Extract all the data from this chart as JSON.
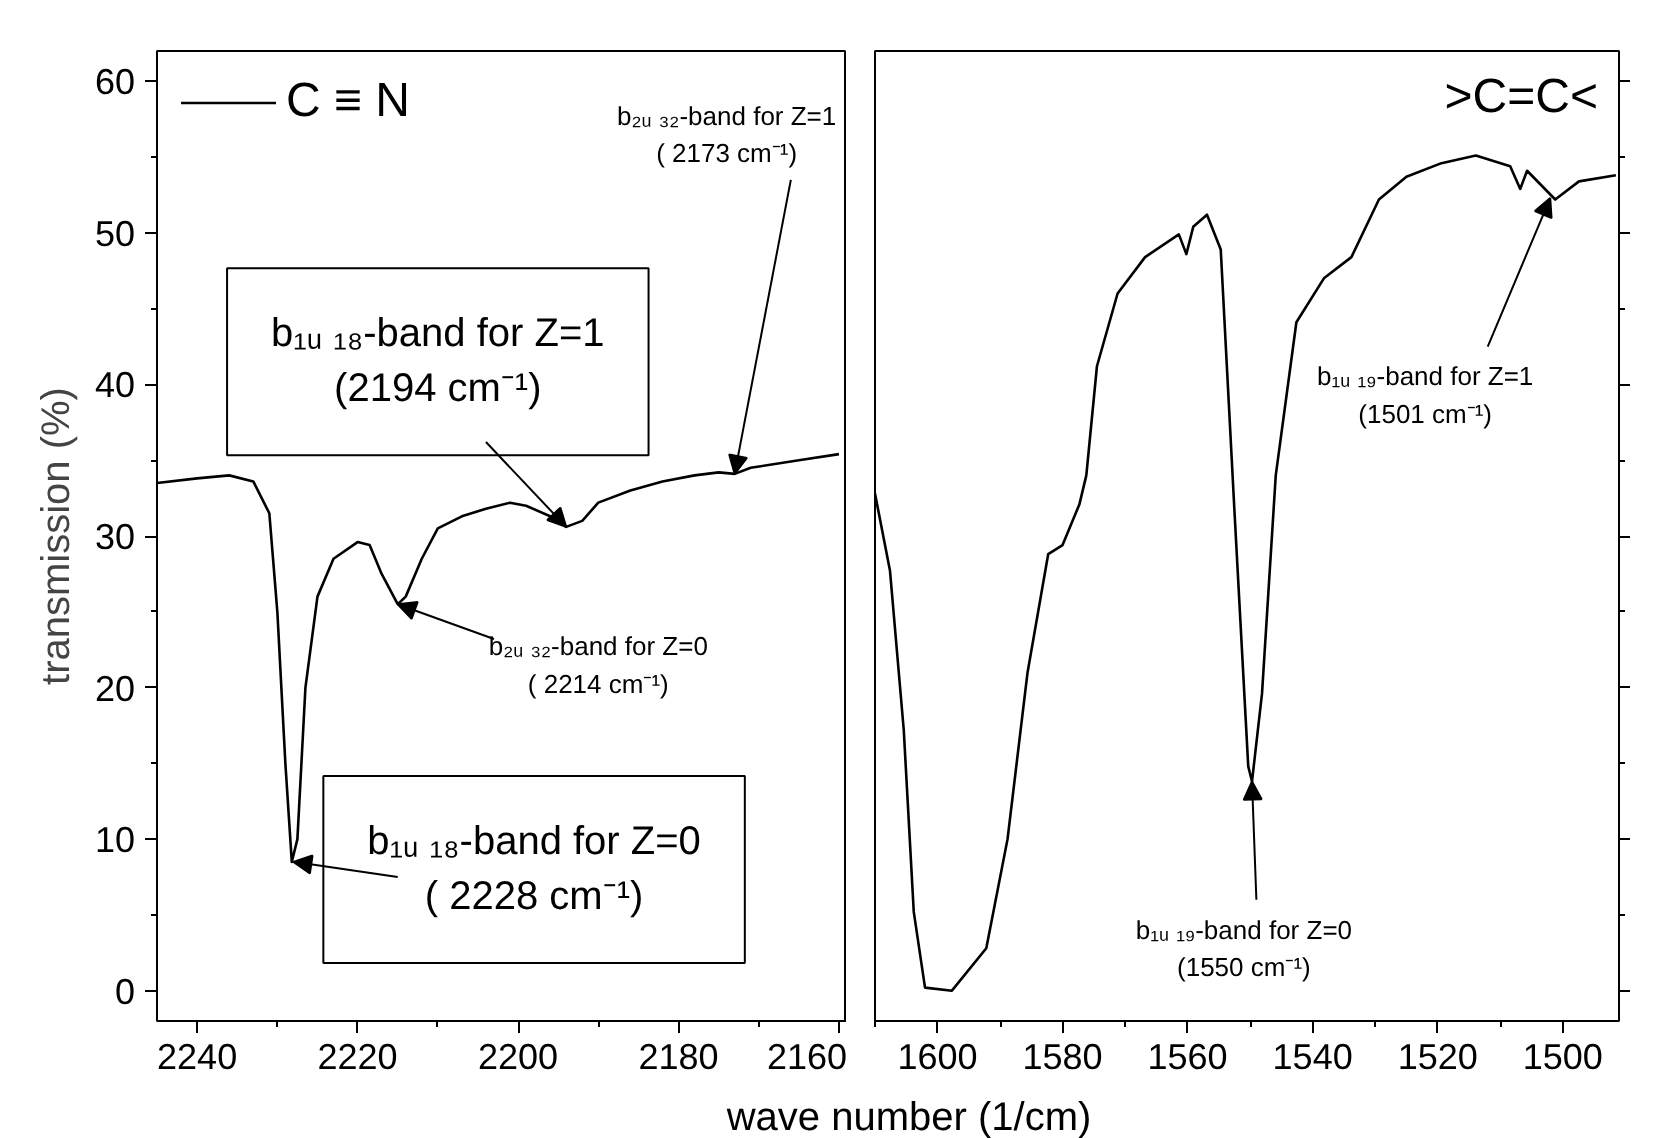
{
  "chart_data": [
    {
      "type": "line",
      "ylabel": "transmission (%)",
      "xlabel": "wave number (1/cm)",
      "legend": "top left",
      "line_style": "solid",
      "marker": "none",
      "x": [
        2245,
        2240,
        2236,
        2233,
        2231,
        2230,
        2229,
        2228.2,
        2227.5,
        2226.5,
        2225,
        2223,
        2220,
        2218.5,
        2217,
        2215,
        2214,
        2212,
        2210,
        2207,
        2204,
        2201,
        2199,
        2196,
        2194,
        2192,
        2190,
        2186,
        2182,
        2178,
        2175,
        2173,
        2171,
        2165,
        2160
      ],
      "series": [
        {
          "name": "C ≡ N",
          "color": "#000000",
          "values": [
            33.5,
            33.8,
            34.0,
            33.6,
            31.5,
            25,
            15,
            8.5,
            10,
            20,
            26,
            28.5,
            29.6,
            29.4,
            27.5,
            25.5,
            26,
            28.5,
            30.5,
            31.3,
            31.8,
            32.2,
            32.0,
            31.3,
            30.6,
            31.0,
            32.2,
            33.0,
            33.6,
            34.0,
            34.2,
            34.1,
            34.5,
            35.0,
            35.4
          ]
        }
      ],
      "xlim": [
        2245,
        2159
      ],
      "xticks": [
        2240,
        2220,
        2200,
        2180,
        2160
      ],
      "ylim": [
        -2,
        62
      ],
      "yticks": [
        0,
        10,
        20,
        30,
        40,
        50,
        60
      ],
      "annotations": [
        {
          "text": "b₁ᵤ ₁₈-band for Z=1\n(2194 cm⁻¹)",
          "x": 2194,
          "y": 30.6
        },
        {
          "text": "b₂ᵤ ₃₂-band for Z=0\n( 2214 cm⁻¹)",
          "x": 2215,
          "y": 25.5
        },
        {
          "text": "b₁ᵤ ₁₈-band for Z=0\n( 2228 cm⁻¹)",
          "x": 2228,
          "y": 8.5
        },
        {
          "text": "b₂ᵤ ₃₂-band for Z=1\n( 2173 cm⁻¹)",
          "x": 2173,
          "y": 34.1
        }
      ]
    },
    {
      "type": "line",
      "legend": "top right",
      "line_style": "solid",
      "marker": "none",
      "tick_labels": "x",
      "x": [
        1610,
        1607.6,
        1605.4,
        1603.8,
        1602,
        1597.7,
        1592.2,
        1588.8,
        1585.6,
        1582.3,
        1580,
        1577.3,
        1576.2,
        1574.5,
        1571.2,
        1566.8,
        1561.4,
        1560.2,
        1559.1,
        1556.9,
        1554.7,
        1552.5,
        1550.3,
        1549.7,
        1548.1,
        1545.9,
        1542.6,
        1538.2,
        1533.8,
        1529.4,
        1525,
        1519.4,
        1513.9,
        1508.4,
        1506.8,
        1505.7,
        1501.2,
        1497.4,
        1491.5
      ],
      "series": [
        {
          "name": ">C=C<",
          "color": "#000000",
          "values": [
            32.8,
            27.7,
            17.2,
            5.2,
            0.2,
            0,
            2.8,
            10,
            21,
            28.8,
            29.4,
            32.1,
            34,
            41.2,
            46,
            48.4,
            49.9,
            48.6,
            50.4,
            51.2,
            48.9,
            31.6,
            14.8,
            13.8,
            19.6,
            34,
            44.1,
            47,
            48.4,
            52.2,
            53.7,
            54.6,
            55.1,
            54.4,
            52.9,
            54.1,
            52.2,
            53.4,
            53.8
          ]
        }
      ],
      "xlim": [
        1610,
        1491
      ],
      "xticks": [
        1600,
        1580,
        1560,
        1540,
        1520,
        1500
      ],
      "ylim": [
        -2,
        62
      ],
      "yticks": [
        0,
        10,
        20,
        30,
        40,
        50,
        60
      ],
      "annotations": [
        {
          "text": "b₁ᵤ ₁₉-band for Z=0\n(1550 cm⁻¹)",
          "x": 1549.7,
          "y": 13.8
        },
        {
          "text": "b₁ᵤ ₁₉-band for Z=1\n(1501 cm⁻¹)",
          "x": 1502,
          "y": 52.3
        }
      ]
    }
  ]
}
